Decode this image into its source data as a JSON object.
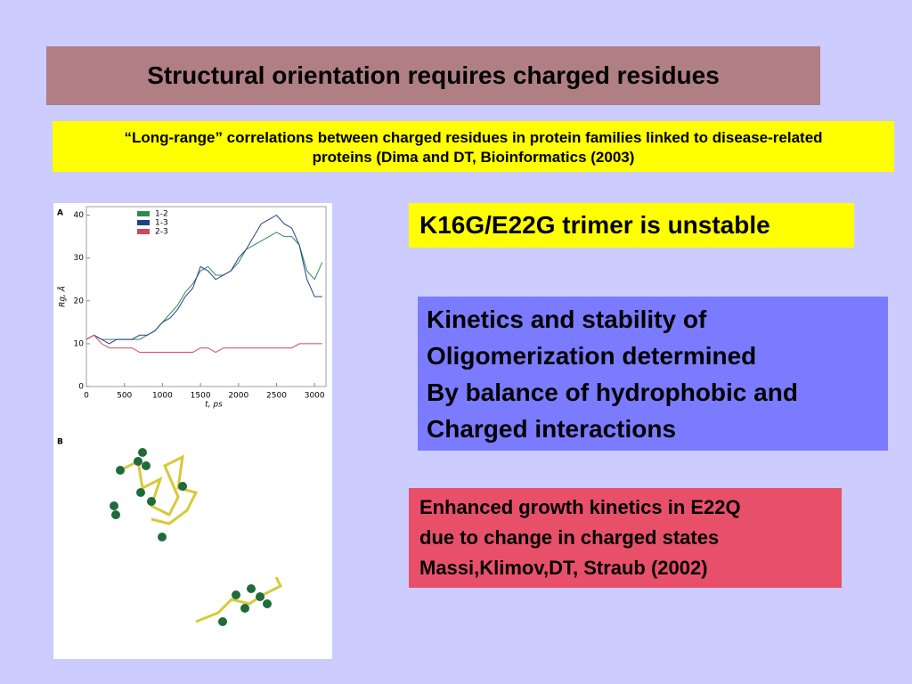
{
  "title": "Structural orientation requires charged residues",
  "citation": [
    "“Long-range” correlations between charged residues in protein families linked to disease-related",
    "proteins (Dima and DT, Bioinformatics (2003)"
  ],
  "trimer_note": "K16G/E22G trimer is unstable",
  "kinetics_note": [
    "Kinetics and stability of",
    "Oligomerization determined",
    "By balance of hydrophobic and",
    "Charged interactions"
  ],
  "growth_note": [
    "Enhanced growth kinetics in E22Q",
    "due to change in charged states",
    "Massi,Klimov,DT, Straub (2002)"
  ],
  "panel_labels": [
    "A",
    "B"
  ],
  "chart_data": {
    "type": "line",
    "x_label": "t, ps",
    "y_label": "Rg, Å",
    "x": [
      0,
      100,
      200,
      300,
      400,
      500,
      600,
      700,
      800,
      900,
      1000,
      1100,
      1200,
      1300,
      1400,
      1500,
      1600,
      1700,
      1800,
      1900,
      2000,
      2100,
      2200,
      2300,
      2400,
      2500,
      2600,
      2700,
      2800,
      2900,
      3000,
      3100
    ],
    "series": [
      {
        "name": "1-2",
        "color": "#2e8b57",
        "values": [
          11,
          12,
          11,
          11,
          11,
          11,
          11,
          11,
          12,
          13,
          15,
          17,
          19,
          22,
          24,
          27,
          28,
          26,
          26,
          27,
          29,
          32,
          33,
          34,
          35,
          36,
          35,
          35,
          33,
          27,
          25,
          29
        ]
      },
      {
        "name": "1-3",
        "color": "#23408e",
        "values": [
          11,
          12,
          11,
          10,
          11,
          11,
          11,
          12,
          12,
          13,
          15,
          16,
          18,
          21,
          23,
          28,
          27,
          25,
          26,
          27,
          30,
          32,
          35,
          38,
          39,
          40,
          38,
          37,
          33,
          25,
          21,
          21
        ]
      },
      {
        "name": "2-3",
        "color": "#d2475a",
        "values": [
          11,
          12,
          10,
          9,
          9,
          9,
          9,
          8,
          8,
          8,
          8,
          8,
          8,
          8,
          8,
          9,
          9,
          8,
          9,
          9,
          9,
          9,
          9,
          9,
          9,
          9,
          9,
          9,
          10,
          10,
          10,
          10
        ]
      }
    ],
    "xlim": [
      0,
      3150
    ],
    "xticks": [
      0,
      500,
      1000,
      1500,
      2000,
      2500,
      3000
    ],
    "ylim": [
      0,
      42
    ],
    "yticks": [
      0,
      10,
      20,
      30,
      40
    ]
  }
}
